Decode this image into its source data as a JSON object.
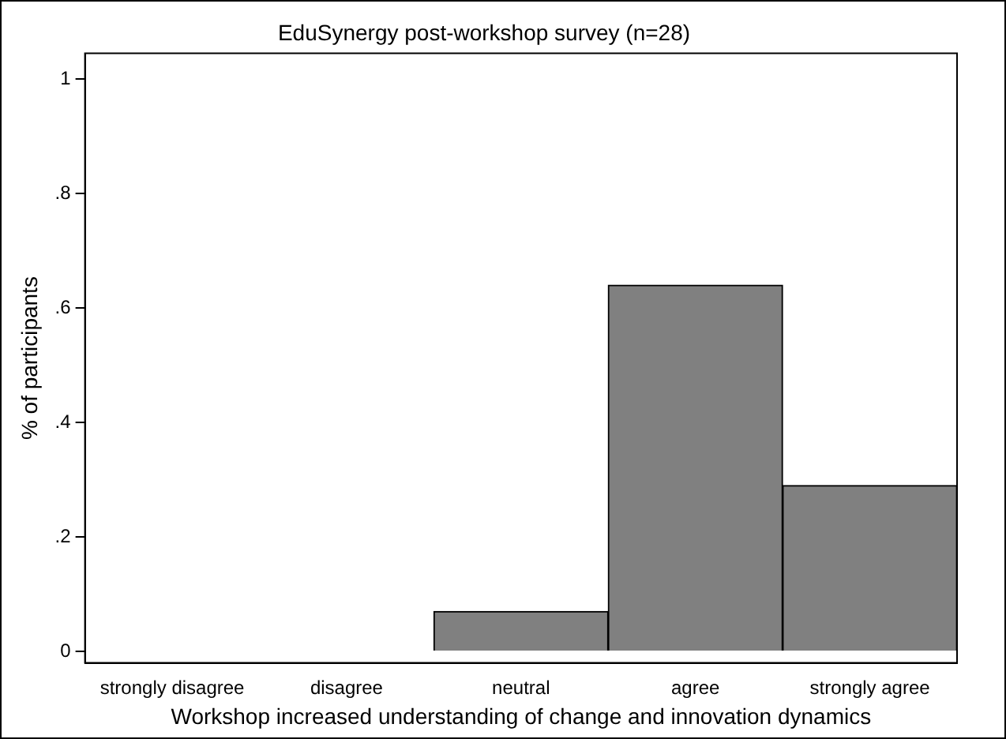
{
  "chart_data": {
    "type": "bar",
    "title": "EduSynergy post-workshop survey (n=28)",
    "xlabel": "Workshop increased understanding of change and innovation dynamics",
    "ylabel": "% of participants",
    "categories": [
      "strongly disagree",
      "disagree",
      "neutral",
      "agree",
      "strongly agree"
    ],
    "values": [
      0,
      0,
      0.07,
      0.64,
      0.29
    ],
    "color": "#808080",
    "ylim": [
      -0.02,
      1.045
    ],
    "yticks": [
      {
        "value": 0,
        "label": "0"
      },
      {
        "value": 0.2,
        "label": ".2"
      },
      {
        "value": 0.4,
        "label": ".4"
      },
      {
        "value": 0.6,
        "label": ".6"
      },
      {
        "value": 0.8,
        "label": ".8"
      },
      {
        "value": 1,
        "label": "1"
      }
    ],
    "grid": false,
    "legend": false
  }
}
